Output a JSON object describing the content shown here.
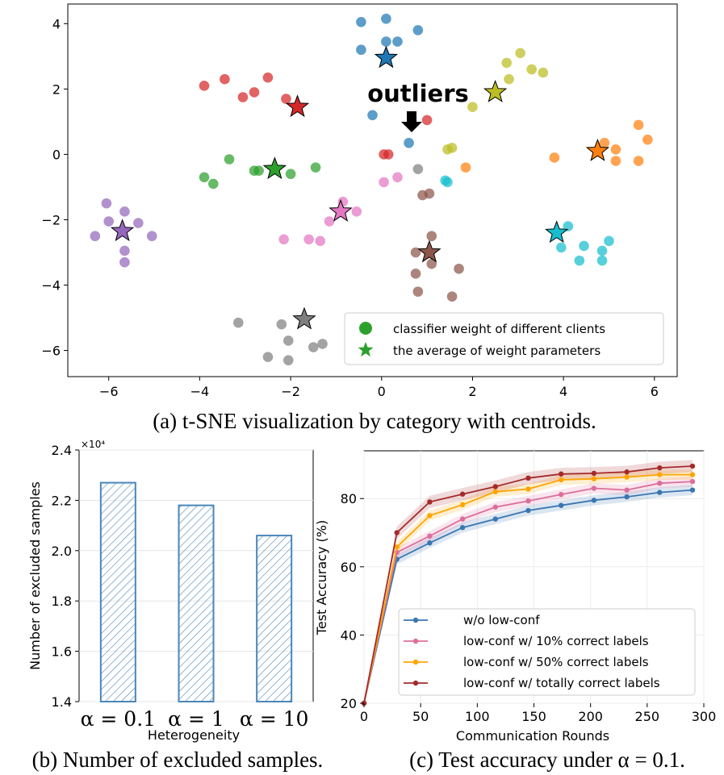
{
  "chart_data": [
    {
      "type": "scatter",
      "title": "",
      "caption": "(a) t-SNE visualization by category with centroids.",
      "xlim": [
        -6.9,
        6.5
      ],
      "ylim": [
        -6.8,
        4.6
      ],
      "xticks": [
        -6,
        -4,
        -2,
        0,
        2,
        4,
        6
      ],
      "yticks": [
        -6,
        -4,
        -2,
        0,
        2,
        4
      ],
      "annotation": "outliers",
      "legend": {
        "position": "lower-right",
        "entries": [
          "classifier weight of different clients",
          "the average of weight parameters"
        ]
      },
      "series": [
        {
          "name": "blue",
          "color": "#1f77b4",
          "centroid": [
            0.1,
            2.95
          ],
          "points": [
            [
              -0.45,
              4.05
            ],
            [
              0.1,
              4.15
            ],
            [
              -0.45,
              3.2
            ],
            [
              0.1,
              3.45
            ],
            [
              0.35,
              3.45
            ],
            [
              0.8,
              3.8
            ],
            [
              -0.2,
              1.2
            ],
            [
              0.6,
              0.35
            ]
          ]
        },
        {
          "name": "orange",
          "color": "#ff7f0e",
          "centroid": [
            4.75,
            0.1
          ],
          "points": [
            [
              3.8,
              -0.1
            ],
            [
              4.9,
              0.35
            ],
            [
              5.15,
              0.15
            ],
            [
              5.15,
              -0.2
            ],
            [
              5.65,
              0.9
            ],
            [
              5.85,
              0.45
            ],
            [
              5.65,
              -0.2
            ],
            [
              1.85,
              -0.4
            ]
          ]
        },
        {
          "name": "green",
          "color": "#2ca02c",
          "centroid": [
            -2.35,
            -0.45
          ],
          "points": [
            [
              -3.35,
              -0.15
            ],
            [
              -3.9,
              -0.7
            ],
            [
              -3.7,
              -0.9
            ],
            [
              -2.8,
              -0.5
            ],
            [
              -2.7,
              -0.5
            ],
            [
              -2.0,
              -0.6
            ],
            [
              -1.45,
              -0.4
            ]
          ]
        },
        {
          "name": "red",
          "color": "#d62728",
          "centroid": [
            -1.85,
            1.45
          ],
          "points": [
            [
              -3.9,
              2.1
            ],
            [
              -3.45,
              2.3
            ],
            [
              -3.05,
              1.75
            ],
            [
              -2.8,
              1.9
            ],
            [
              -2.5,
              2.35
            ],
            [
              -2.1,
              1.7
            ],
            [
              0.15,
              0.0
            ],
            [
              0.05,
              0.0
            ],
            [
              1.0,
              1.05
            ]
          ]
        },
        {
          "name": "purple",
          "color": "#9467bd",
          "centroid": [
            -5.7,
            -2.35
          ],
          "points": [
            [
              -6.05,
              -1.5
            ],
            [
              -6.0,
              -2.05
            ],
            [
              -5.65,
              -1.75
            ],
            [
              -5.35,
              -2.1
            ],
            [
              -5.05,
              -2.5
            ],
            [
              -6.3,
              -2.5
            ],
            [
              -5.65,
              -2.95
            ],
            [
              -5.65,
              -3.3
            ]
          ]
        },
        {
          "name": "brown",
          "color": "#8c564b",
          "centroid": [
            1.05,
            -3.0
          ],
          "points": [
            [
              1.1,
              -2.5
            ],
            [
              0.75,
              -3.0
            ],
            [
              0.75,
              -3.65
            ],
            [
              1.1,
              -3.35
            ],
            [
              1.7,
              -3.5
            ],
            [
              0.8,
              -4.2
            ],
            [
              1.55,
              -4.35
            ],
            [
              0.9,
              -1.25
            ],
            [
              1.05,
              -1.2
            ]
          ]
        },
        {
          "name": "pink",
          "color": "#e377c2",
          "centroid": [
            -0.9,
            -1.75
          ],
          "points": [
            [
              -0.85,
              -1.45
            ],
            [
              -0.55,
              -1.75
            ],
            [
              -1.15,
              -2.05
            ],
            [
              -2.15,
              -2.6
            ],
            [
              -1.6,
              -2.6
            ],
            [
              -1.35,
              -2.65
            ],
            [
              0.35,
              -0.7
            ],
            [
              0.05,
              -0.85
            ]
          ]
        },
        {
          "name": "gray",
          "color": "#7f7f7f",
          "centroid": [
            -1.7,
            -5.05
          ],
          "points": [
            [
              -3.15,
              -5.15
            ],
            [
              -2.2,
              -5.2
            ],
            [
              -2.05,
              -5.7
            ],
            [
              -1.5,
              -5.9
            ],
            [
              -1.3,
              -5.8
            ],
            [
              -2.5,
              -6.2
            ],
            [
              -2.05,
              -6.3
            ],
            [
              0.8,
              -0.45
            ]
          ]
        },
        {
          "name": "olive",
          "color": "#bcbd22",
          "centroid": [
            2.5,
            1.9
          ],
          "points": [
            [
              2.75,
              2.8
            ],
            [
              3.05,
              3.1
            ],
            [
              3.3,
              2.6
            ],
            [
              3.55,
              2.5
            ],
            [
              2.8,
              2.3
            ],
            [
              2.0,
              1.45
            ],
            [
              1.45,
              0.15
            ],
            [
              1.55,
              0.2
            ]
          ]
        },
        {
          "name": "cyan",
          "color": "#17becf",
          "centroid": [
            3.85,
            -2.4
          ],
          "points": [
            [
              4.1,
              -2.2
            ],
            [
              3.95,
              -2.85
            ],
            [
              4.45,
              -2.8
            ],
            [
              4.35,
              -3.25
            ],
            [
              4.85,
              -2.95
            ],
            [
              5.0,
              -2.65
            ],
            [
              4.85,
              -3.25
            ],
            [
              1.4,
              -0.8
            ],
            [
              1.45,
              -0.85
            ]
          ]
        }
      ]
    },
    {
      "type": "bar",
      "caption": "(b) Number of excluded samples.",
      "categories": [
        "α = 0.1",
        "α = 1",
        "α = 10"
      ],
      "values": [
        2.27,
        2.18,
        2.06
      ],
      "multiplier": "×10⁴",
      "xlabel": "Heterogeneity",
      "ylabel": "Number of excluded samples",
      "ylim": [
        1.4,
        2.4
      ],
      "yticks": [
        "1.4",
        "1.6",
        "1.8",
        "2.0",
        "2.2",
        "2.4"
      ],
      "color": "#4a86b8"
    },
    {
      "type": "line",
      "caption": "(c) Test accuracy under α = 0.1.",
      "xlabel": "Communication Rounds",
      "ylabel": "Test Accuracy (%)",
      "xlim": [
        0,
        300
      ],
      "ylim": [
        20,
        94
      ],
      "xticks": [
        0,
        50,
        100,
        150,
        200,
        250,
        300
      ],
      "yticks": [
        20,
        40,
        60,
        80
      ],
      "legend": {
        "position": "lower-right"
      },
      "x": [
        0,
        29,
        58,
        87,
        116,
        145,
        174,
        203,
        232,
        261,
        290
      ],
      "series": [
        {
          "name": "w/o low-conf",
          "color": "#3a76b0",
          "band": 1.5,
          "values": [
            20,
            62.2,
            67.0,
            71.5,
            74.0,
            76.5,
            78.0,
            79.5,
            80.5,
            81.8,
            82.5
          ]
        },
        {
          "name": "low-conf w/ 10% correct labels",
          "color": "#dc6e9c",
          "band": 1.5,
          "values": [
            20,
            64.2,
            69.0,
            74.0,
            77.5,
            79.3,
            81.2,
            83.0,
            82.5,
            84.5,
            85.0
          ]
        },
        {
          "name": "low-conf w/ 50% correct labels",
          "color": "#ffa500",
          "band": 1.5,
          "values": [
            20,
            65.8,
            75.0,
            78.2,
            82.0,
            82.8,
            85.5,
            85.8,
            86.3,
            87.0,
            87.0
          ]
        },
        {
          "name": "low-conf w/ totally correct labels",
          "color": "#a52a2a",
          "band": 1.8,
          "values": [
            20,
            70.0,
            79.0,
            81.3,
            83.5,
            86.0,
            87.2,
            87.4,
            87.8,
            89.0,
            89.5
          ]
        }
      ]
    }
  ]
}
